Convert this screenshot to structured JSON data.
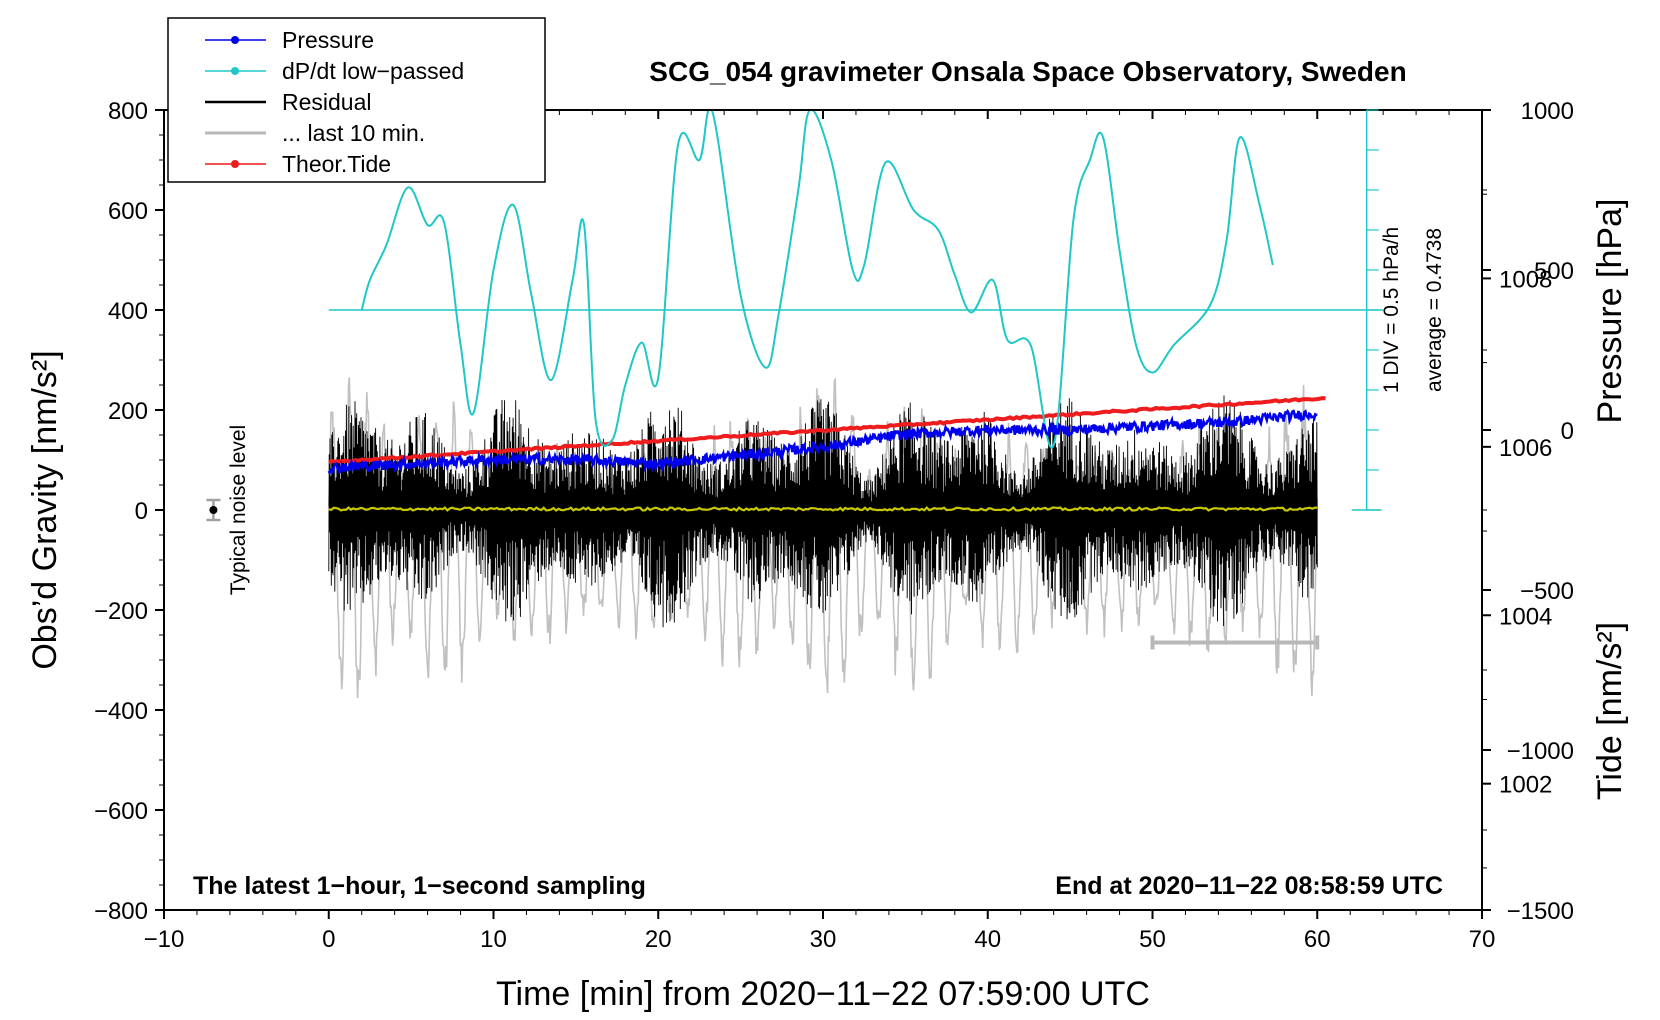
{
  "chart_data": {
    "type": "line",
    "title": "SCG_054 gravimeter Onsala Space Observatory, Sweden",
    "xlabel": "Time [min] from 2020−11−22 07:59:00 UTC",
    "x_ticks": [
      -10,
      0,
      10,
      20,
      30,
      40,
      50,
      60,
      70
    ],
    "x_tick_labels": [
      "−10",
      "0",
      "10",
      "20",
      "30",
      "40",
      "50",
      "60",
      "70"
    ],
    "xlim": [
      -10,
      70
    ],
    "left_axis": {
      "label": "Obs’d Gravity [nm/s²]",
      "ylim": [
        -800,
        800
      ],
      "ticks": [
        -800,
        -600,
        -400,
        -200,
        0,
        200,
        400,
        600,
        800
      ],
      "tick_labels": [
        "−800",
        "−600",
        "−400",
        "−200",
        "0",
        "200",
        "400",
        "600",
        "800"
      ]
    },
    "pressure_axis": {
      "label": "Pressure [hPa]",
      "ylim": [
        1000.5,
        1010.0
      ],
      "ticks": [
        1002,
        1004,
        1006,
        1008
      ],
      "tick_labels": [
        "1002",
        "1004",
        "1006",
        "1008"
      ]
    },
    "tide_axis": {
      "label": "Tide [nm/s²]",
      "ylim": [
        -1500,
        1000
      ],
      "ticks": [
        -1500,
        -1000,
        -500,
        0,
        500,
        1000
      ],
      "tick_labels": [
        "−1500",
        "−1000",
        "−500",
        "0",
        "500",
        "1000"
      ]
    },
    "dpdt_scale": {
      "baseline_gravity": 400,
      "bottom_gravity": 0,
      "divisions": 10,
      "label_div": "1 DIV = 0.5 hPa/h",
      "label_avg": "average = 0.4738"
    },
    "series": [
      {
        "name": "Pressure",
        "color": "#0000ee",
        "axis": "pressure",
        "x": [
          0,
          5,
          10,
          15,
          20,
          25,
          30,
          35,
          40,
          45,
          50,
          55,
          60
        ],
        "y": [
          1005.75,
          1005.8,
          1005.85,
          1005.85,
          1005.8,
          1005.9,
          1006.0,
          1006.15,
          1006.2,
          1006.2,
          1006.25,
          1006.3,
          1006.4
        ],
        "noise": 0.06
      },
      {
        "name": "dP/dt low−passed",
        "color": "#1fc7c7",
        "axis": "gravity",
        "x": [
          2.0,
          2.5,
          3.5,
          4.8,
          6.0,
          7.0,
          8.0,
          8.8,
          10.0,
          11.2,
          12.3,
          13.5,
          14.8,
          15.5,
          16.2,
          17.2,
          18.0,
          19.0,
          20.0,
          21.2,
          22.5,
          23.3,
          25.0,
          26.5,
          27.3,
          28.5,
          29.2,
          30.5,
          31.8,
          32.5,
          33.8,
          35.5,
          37.0,
          38.0,
          39.0,
          40.3,
          41.2,
          42.6,
          44.0,
          45.2,
          46.2,
          47.0,
          48.0,
          49.0,
          50.0,
          51.3,
          53.5,
          54.5,
          55.3,
          56.5,
          57.3
        ],
        "y": [
          400,
          460,
          530,
          645,
          570,
          575,
          330,
          195,
          480,
          610,
          430,
          260,
          460,
          570,
          180,
          140,
          250,
          335,
          265,
          730,
          700,
          795,
          430,
          285,
          390,
          640,
          800,
          700,
          480,
          490,
          695,
          600,
          560,
          470,
          395,
          460,
          340,
          330,
          130,
          580,
          700,
          745,
          520,
          330,
          275,
          330,
          410,
          540,
          745,
          610,
          490
        ]
      },
      {
        "name": "Residual",
        "color": "#000000",
        "axis": "gravity",
        "x_range": [
          0,
          60
        ],
        "amplitude": 190
      },
      {
        "name": "... last 10 min.",
        "color": "#b8b8b8",
        "axis": "gravity",
        "x_range": [
          50,
          60
        ],
        "level": -265
      },
      {
        "name": "Theor.Tide",
        "color": "#ee1c1c",
        "axis": "tide",
        "x": [
          0,
          60.5
        ],
        "y": [
          -100,
          100
        ]
      },
      {
        "name": "Mean residual",
        "color": "#c8c800",
        "axis": "gravity",
        "x": [
          0,
          60
        ],
        "y": [
          2,
          2
        ]
      },
      {
        "name": "Residual (tide scale)",
        "color": "#c0c0c0",
        "axis": "tide",
        "x_range": [
          0,
          60
        ],
        "center": -350,
        "amplitude": 550
      }
    ],
    "noise_marker": {
      "x": -7,
      "y": 0,
      "err": 20,
      "label": "Typical noise level"
    },
    "legend": {
      "position": "top-left",
      "entries": [
        {
          "label": "Pressure",
          "color": "#0000ee",
          "marker": true
        },
        {
          "label": "dP/dt low−passed",
          "color": "#1fc7c7",
          "marker": true
        },
        {
          "label": "Residual",
          "color": "#000000",
          "marker": false
        },
        {
          "label": "... last 10 min.",
          "color": "#b8b8b8",
          "marker": false
        },
        {
          "label": "Theor.Tide",
          "color": "#ee1c1c",
          "marker": true
        }
      ]
    },
    "annotations": {
      "bottom_left": "The latest 1−hour, 1−second sampling",
      "bottom_right": "End at 2020−11−22 08:58:59 UTC"
    }
  }
}
